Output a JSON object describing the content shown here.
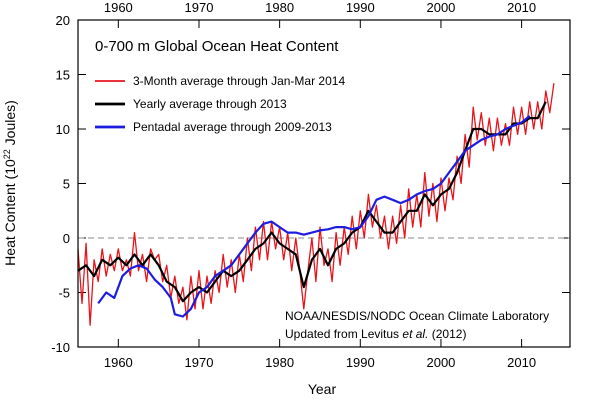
{
  "chart_data": {
    "type": "line",
    "title": "0-700 m Global Ocean Heat Content",
    "xlabel": "Year",
    "ylabel": [
      "Heat Content (10",
      "22",
      " Joules)"
    ],
    "annotations": [
      "NOAA/NESDIS/NODC Ocean Climate Laboratory",
      [
        "Updated from Levitus ",
        "et al.",
        " (2012)"
      ]
    ],
    "xlim": [
      1955,
      2016
    ],
    "xticks": [
      1960,
      1970,
      1980,
      1990,
      2000,
      2010
    ],
    "ylim": [
      -10,
      20
    ],
    "yticks": [
      -10,
      -5,
      0,
      5,
      10,
      15,
      20
    ],
    "zero_line": {
      "value": 0,
      "dashed": true
    },
    "legend": "upper left",
    "series": [
      {
        "name": "3-Month average through Jan-Mar 2014",
        "color": "#e8141b",
        "width": 1.3,
        "x": [
          1955,
          1955.5,
          1956,
          1956.5,
          1957,
          1957.5,
          1958,
          1958.5,
          1959,
          1959.5,
          1960,
          1960.5,
          1961,
          1961.5,
          1962,
          1962.5,
          1963,
          1963.5,
          1964,
          1964.5,
          1965,
          1965.5,
          1966,
          1966.5,
          1967,
          1967.5,
          1968,
          1968.5,
          1969,
          1969.5,
          1970,
          1970.5,
          1971,
          1971.5,
          1972,
          1972.5,
          1973,
          1973.5,
          1974,
          1974.5,
          1975,
          1975.5,
          1976,
          1976.5,
          1977,
          1977.5,
          1978,
          1978.5,
          1979,
          1979.5,
          1980,
          1980.5,
          1981,
          1981.5,
          1982,
          1982.5,
          1983,
          1983.5,
          1984,
          1984.5,
          1985,
          1985.5,
          1986,
          1986.5,
          1987,
          1987.5,
          1988,
          1988.5,
          1989,
          1989.5,
          1990,
          1990.5,
          1991,
          1991.5,
          1992,
          1992.5,
          1993,
          1993.5,
          1994,
          1994.5,
          1995,
          1995.5,
          1996,
          1996.5,
          1997,
          1997.5,
          1998,
          1998.5,
          1999,
          1999.5,
          2000,
          2000.5,
          2001,
          2001.5,
          2002,
          2002.5,
          2003,
          2003.5,
          2004,
          2004.5,
          2005,
          2005.5,
          2006,
          2006.5,
          2007,
          2007.5,
          2008,
          2008.5,
          2009,
          2009.5,
          2010,
          2010.5,
          2011,
          2011.5,
          2012,
          2012.5,
          2013,
          2013.5,
          2014
        ],
        "values": [
          -1,
          -6,
          -0.5,
          -8,
          -2,
          -4,
          -1,
          -3.5,
          -1.5,
          -3,
          -1,
          -3,
          -2,
          -3.5,
          0.5,
          -3,
          -1.5,
          -4,
          -1,
          -2,
          -1.5,
          -4,
          -2.5,
          -5.5,
          -3.5,
          -6,
          -4.5,
          -7.5,
          -3.5,
          -6.5,
          -3,
          -6.5,
          -3.5,
          -6,
          -3,
          -5,
          -1.5,
          -4.5,
          -2,
          -5,
          -1.5,
          -4,
          0,
          -3,
          1,
          -2,
          1.5,
          -2,
          1.5,
          -1,
          1,
          -2,
          0.5,
          -3,
          0,
          -3,
          -6.5,
          -3,
          0,
          -4,
          1,
          -2.5,
          -1,
          -4,
          0.5,
          -2.5,
          1,
          -1.5,
          2,
          -1,
          2.5,
          0,
          4,
          1,
          3,
          0,
          2,
          -1,
          2,
          -0.5,
          3,
          0,
          4.5,
          1,
          4,
          1,
          6,
          2,
          5,
          1.5,
          5.5,
          2.5,
          5.5,
          3.5,
          7.5,
          5,
          9.5,
          6.5,
          12,
          9,
          11.5,
          8.5,
          11,
          8,
          11,
          8.5,
          10.5,
          8.5,
          12,
          9.5,
          12,
          9.5,
          12.5,
          10,
          12.5,
          10,
          13.5,
          11.5,
          14.2
        ]
      },
      {
        "name": "Yearly average through 2013",
        "color": "#000000",
        "width": 2.2,
        "x": [
          1955,
          1956,
          1957,
          1958,
          1959,
          1960,
          1961,
          1962,
          1963,
          1964,
          1965,
          1966,
          1967,
          1968,
          1969,
          1970,
          1971,
          1972,
          1973,
          1974,
          1975,
          1976,
          1977,
          1978,
          1979,
          1980,
          1981,
          1982,
          1983,
          1984,
          1985,
          1986,
          1987,
          1988,
          1989,
          1990,
          1991,
          1992,
          1993,
          1994,
          1995,
          1996,
          1997,
          1998,
          1999,
          2000,
          2001,
          2002,
          2003,
          2004,
          2005,
          2006,
          2007,
          2008,
          2009,
          2010,
          2011,
          2012,
          2013
        ],
        "values": [
          -3,
          -2.5,
          -3.5,
          -2,
          -2.5,
          -1.8,
          -2.5,
          -1.5,
          -2.5,
          -1.5,
          -2.5,
          -4,
          -4.5,
          -5.8,
          -5,
          -4.5,
          -5,
          -4,
          -3,
          -3.5,
          -3,
          -2,
          -1,
          -0.5,
          0.5,
          -0.5,
          -1,
          -1.5,
          -4.5,
          -2,
          -1,
          -2.5,
          -1,
          -0.5,
          0.5,
          1,
          2.5,
          1.5,
          0.5,
          0.5,
          1.5,
          2.5,
          2.5,
          4,
          3,
          4,
          4.5,
          6,
          8,
          10,
          10,
          9.5,
          9.5,
          9.5,
          10.5,
          10.5,
          11,
          11,
          12.5
        ]
      },
      {
        "name": "Pentadal average through 2009-2013",
        "color": "#1d1de0",
        "width": 2.2,
        "x": [
          1957.5,
          1958.5,
          1959.5,
          1960.5,
          1961.5,
          1962.5,
          1963.5,
          1964.5,
          1965.5,
          1966.5,
          1967,
          1968,
          1969,
          1970,
          1971,
          1972,
          1973,
          1974,
          1975,
          1976,
          1977,
          1978,
          1979,
          1980,
          1981,
          1982,
          1983,
          1984,
          1985,
          1986,
          1987,
          1988,
          1989,
          1990,
          1991,
          1992,
          1993,
          1994,
          1995,
          1996,
          1997,
          1998,
          1999,
          2000,
          2001,
          2002,
          2003,
          2004,
          2005,
          2006,
          2007,
          2008,
          2009,
          2010,
          2011
        ],
        "values": [
          -6,
          -5,
          -5.5,
          -3.5,
          -2.8,
          -2.5,
          -2.8,
          -3.8,
          -4.5,
          -5.5,
          -7,
          -7.2,
          -6.5,
          -5,
          -4.5,
          -3.5,
          -3,
          -2.5,
          -1.5,
          -0.5,
          0.5,
          1.3,
          1.5,
          1,
          0.5,
          0.5,
          0.3,
          0.5,
          0.7,
          0.8,
          1,
          1,
          0.8,
          1,
          2,
          3.5,
          3.8,
          3.5,
          3.2,
          3.5,
          4,
          4.3,
          4.5,
          5,
          6,
          7,
          8,
          8.5,
          9,
          9.3,
          9.5,
          10,
          10.3,
          10.6,
          11.2
        ]
      }
    ]
  }
}
